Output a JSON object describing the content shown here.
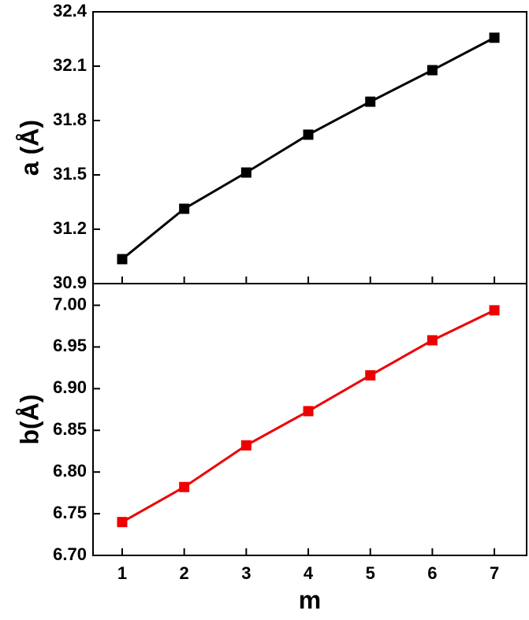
{
  "chart_data": [
    {
      "type": "line",
      "y_label": "a (Å)",
      "x": [
        1,
        2,
        3,
        4,
        5,
        6,
        7
      ],
      "series": [
        {
          "color": "#000000",
          "values": [
            31.035,
            31.313,
            31.513,
            31.722,
            31.904,
            32.078,
            32.257
          ]
        }
      ],
      "xlim": [
        0.53,
        7.52
      ],
      "xticks": [
        1,
        2,
        3,
        4,
        5,
        6,
        7
      ],
      "ylim": [
        30.9,
        32.4
      ],
      "yticks": [
        30.9,
        31.2,
        31.5,
        31.8,
        32.1,
        32.4
      ]
    },
    {
      "type": "line",
      "y_label": "b(Å)",
      "x_label": "m",
      "x": [
        1,
        2,
        3,
        4,
        5,
        6,
        7
      ],
      "series": [
        {
          "color": "#ee0000",
          "values": [
            6.74,
            6.782,
            6.832,
            6.873,
            6.916,
            6.958,
            6.994
          ]
        }
      ],
      "xlim": [
        0.53,
        7.52
      ],
      "xticks": [
        1,
        2,
        3,
        4,
        5,
        6,
        7
      ],
      "ylim": [
        6.7,
        7.026
      ],
      "yticks": [
        {
          "value": 6.7,
          "label": "6.70"
        },
        6.75,
        {
          "value": 6.8,
          "label": "6.80"
        },
        6.85,
        {
          "value": 6.9,
          "label": "6.90"
        },
        6.95,
        {
          "value": 7,
          "label": "7.00"
        }
      ]
    }
  ]
}
